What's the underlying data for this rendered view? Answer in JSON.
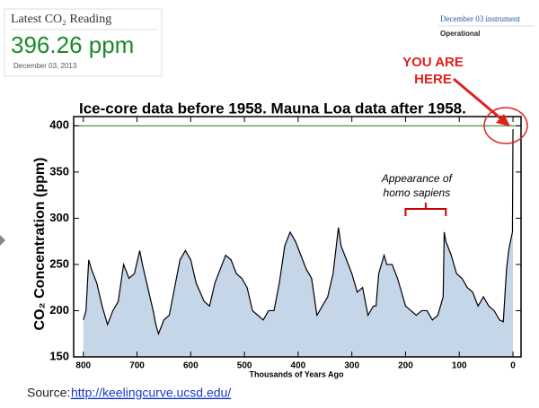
{
  "widget": {
    "title": "Latest CO₂ Reading",
    "reading": "396.26 ppm",
    "date": "December 03, 2013"
  },
  "status": {
    "instrument": "December 03 instrument",
    "state": "Operational"
  },
  "chart_data": {
    "type": "area",
    "title": "Ice-core data before 1958. Mauna Loa data after 1958.",
    "x_label": "Thousands of Years Ago",
    "y_label": "CO₂ Concentration (ppm)",
    "x": [
      800,
      795,
      790,
      785,
      775,
      765,
      755,
      745,
      735,
      725,
      715,
      705,
      695,
      690,
      680,
      670,
      665,
      660,
      650,
      640,
      630,
      620,
      610,
      600,
      590,
      575,
      565,
      555,
      545,
      535,
      525,
      515,
      505,
      495,
      485,
      475,
      465,
      455,
      445,
      435,
      425,
      415,
      405,
      395,
      385,
      375,
      365,
      355,
      345,
      335,
      325,
      320,
      310,
      300,
      290,
      280,
      270,
      260,
      255,
      250,
      245,
      240,
      235,
      225,
      215,
      200,
      190,
      180,
      170,
      160,
      150,
      140,
      130,
      128,
      125,
      115,
      105,
      95,
      85,
      75,
      65,
      55,
      45,
      35,
      25,
      18,
      12,
      8,
      3,
      1,
      0
    ],
    "values": [
      190,
      200,
      255,
      245,
      230,
      205,
      185,
      200,
      210,
      250,
      235,
      240,
      265,
      250,
      225,
      200,
      185,
      175,
      190,
      195,
      225,
      255,
      265,
      255,
      230,
      210,
      205,
      230,
      245,
      260,
      255,
      240,
      235,
      225,
      200,
      195,
      190,
      200,
      200,
      230,
      270,
      285,
      275,
      260,
      245,
      235,
      195,
      205,
      215,
      240,
      290,
      270,
      255,
      240,
      220,
      225,
      195,
      205,
      205,
      240,
      250,
      260,
      250,
      250,
      235,
      205,
      200,
      195,
      200,
      200,
      190,
      195,
      215,
      285,
      275,
      260,
      240,
      235,
      225,
      220,
      205,
      215,
      205,
      200,
      190,
      188,
      245,
      265,
      280,
      285,
      396.26
    ],
    "color": "#c6d6e9",
    "line_color": "#000000",
    "reference_line": {
      "value": 400,
      "color": "#2e8b2e"
    },
    "xlim": [
      818,
      -15
    ],
    "ylim": [
      150,
      410
    ],
    "xticks": [
      800,
      700,
      600,
      500,
      400,
      300,
      200,
      100,
      0
    ],
    "yticks": [
      150,
      200,
      250,
      300,
      350,
      400
    ],
    "grid": false,
    "annotations": [
      {
        "lines": [
          "Appearance of",
          "homo sapiens"
        ],
        "x": [
          200,
          125
        ]
      },
      {
        "lines": [
          "YOU ARE",
          "HERE"
        ],
        "color": "#e0201e"
      }
    ]
  },
  "source": {
    "label": "Source: ",
    "link": "http://keelingcurve.ucsd.edu/"
  }
}
